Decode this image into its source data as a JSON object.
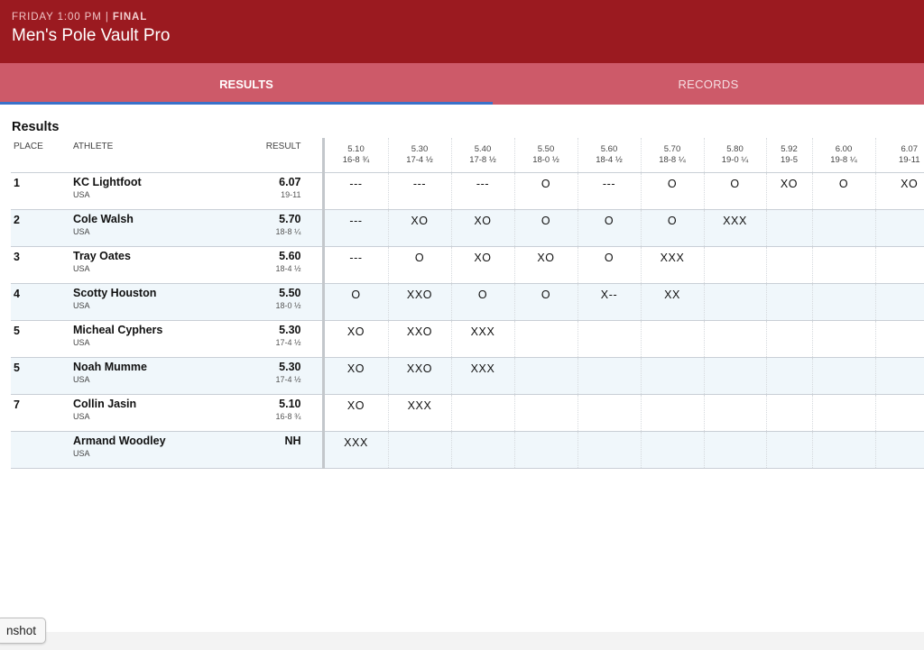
{
  "header": {
    "time": "FRIDAY 1:00 PM",
    "separator": " | ",
    "status": "FINAL",
    "title": "Men's Pole Vault Pro"
  },
  "tabs": [
    {
      "label": "RESULTS",
      "active": true
    },
    {
      "label": "RECORDS",
      "active": false
    }
  ],
  "section_title": "Results",
  "columns": {
    "place": "PLACE",
    "athlete": "ATHLETE",
    "result": "RESULT"
  },
  "heights": [
    {
      "metric": "5.10",
      "imperial": "16-8 ¾"
    },
    {
      "metric": "5.30",
      "imperial": "17-4 ½"
    },
    {
      "metric": "5.40",
      "imperial": "17-8 ½"
    },
    {
      "metric": "5.50",
      "imperial": "18-0 ½"
    },
    {
      "metric": "5.60",
      "imperial": "18-4 ½"
    },
    {
      "metric": "5.70",
      "imperial": "18-8 ¼"
    },
    {
      "metric": "5.80",
      "imperial": "19-0 ¼"
    },
    {
      "metric": "5.92",
      "imperial": "19-5"
    },
    {
      "metric": "6.00",
      "imperial": "19-8 ¼"
    },
    {
      "metric": "6.07",
      "imperial": "19-11"
    }
  ],
  "rows": [
    {
      "place": "1",
      "name": "KC Lightfoot",
      "country": "USA",
      "mark": "6.07",
      "imperial": "19-11",
      "attempts": [
        "---",
        "---",
        "---",
        "O",
        "---",
        "O",
        "O",
        "XO",
        "O",
        "XO"
      ]
    },
    {
      "place": "2",
      "name": "Cole Walsh",
      "country": "USA",
      "mark": "5.70",
      "imperial": "18-8 ¼",
      "attempts": [
        "---",
        "XO",
        "XO",
        "O",
        "O",
        "O",
        "XXX",
        "",
        "",
        ""
      ]
    },
    {
      "place": "3",
      "name": "Tray Oates",
      "country": "USA",
      "mark": "5.60",
      "imperial": "18-4 ½",
      "attempts": [
        "---",
        "O",
        "XO",
        "XO",
        "O",
        "XXX",
        "",
        "",
        "",
        ""
      ]
    },
    {
      "place": "4",
      "name": "Scotty Houston",
      "country": "USA",
      "mark": "5.50",
      "imperial": "18-0 ½",
      "attempts": [
        "O",
        "XXO",
        "O",
        "O",
        "X--",
        "XX",
        "",
        "",
        "",
        ""
      ]
    },
    {
      "place": "5",
      "name": "Micheal Cyphers",
      "country": "USA",
      "mark": "5.30",
      "imperial": "17-4 ½",
      "attempts": [
        "XO",
        "XXO",
        "XXX",
        "",
        "",
        "",
        "",
        "",
        "",
        ""
      ]
    },
    {
      "place": "5",
      "name": "Noah Mumme",
      "country": "USA",
      "mark": "5.30",
      "imperial": "17-4 ½",
      "attempts": [
        "XO",
        "XXO",
        "XXX",
        "",
        "",
        "",
        "",
        "",
        "",
        ""
      ]
    },
    {
      "place": "7",
      "name": "Collin Jasin",
      "country": "USA",
      "mark": "5.10",
      "imperial": "16-8 ¾",
      "attempts": [
        "XO",
        "XXX",
        "",
        "",
        "",
        "",
        "",
        "",
        "",
        ""
      ]
    },
    {
      "place": "",
      "name": "Armand Woodley",
      "country": "USA",
      "mark": "NH",
      "imperial": "",
      "attempts": [
        "XXX",
        "",
        "",
        "",
        "",
        "",
        "",
        "",
        "",
        ""
      ]
    }
  ],
  "overlay": {
    "screenshot_label": "nshot"
  },
  "colors": {
    "header_bg": "#9b1a20",
    "tabs_bg": "#cd5a69",
    "tab_indicator": "#3a71c9",
    "alt_row_bg": "#f0f7fb"
  }
}
